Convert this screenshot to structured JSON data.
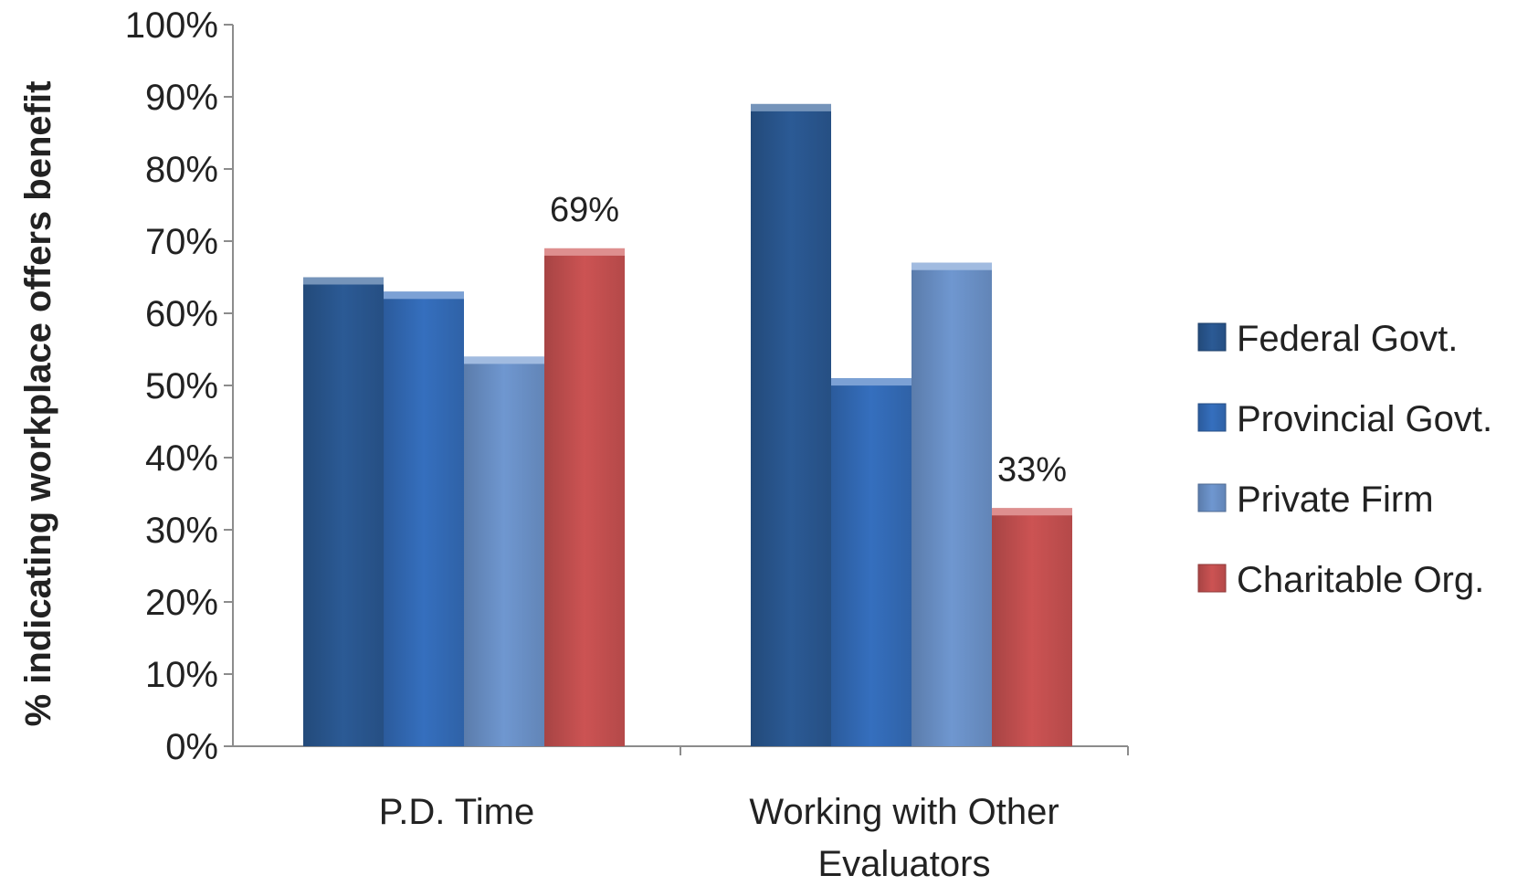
{
  "chart_data": {
    "type": "bar",
    "ylabel": "% indicating workplace offers benefit",
    "ylim": [
      0,
      100
    ],
    "yticks": [
      "0%",
      "10%",
      "20%",
      "30%",
      "40%",
      "50%",
      "60%",
      "70%",
      "80%",
      "90%",
      "100%"
    ],
    "categories": [
      [
        "P.D. Time"
      ],
      [
        "Working with Other",
        "Evaluators"
      ]
    ],
    "series": [
      {
        "name": "Federal Govt.",
        "values": [
          65,
          89
        ],
        "color": "#2b5a95"
      },
      {
        "name": "Provincial Govt.",
        "values": [
          63,
          51
        ],
        "color": "#356fbe"
      },
      {
        "name": "Private Firm",
        "values": [
          54,
          67
        ],
        "color": "#6f97d0"
      },
      {
        "name": "Charitable Org.",
        "values": [
          69,
          33
        ],
        "color": "#cc5353"
      }
    ],
    "data_labels": [
      {
        "series": 3,
        "category": 0,
        "text": "69%"
      },
      {
        "series": 3,
        "category": 1,
        "text": "33%"
      }
    ],
    "grid": false,
    "legend_position": "right"
  }
}
